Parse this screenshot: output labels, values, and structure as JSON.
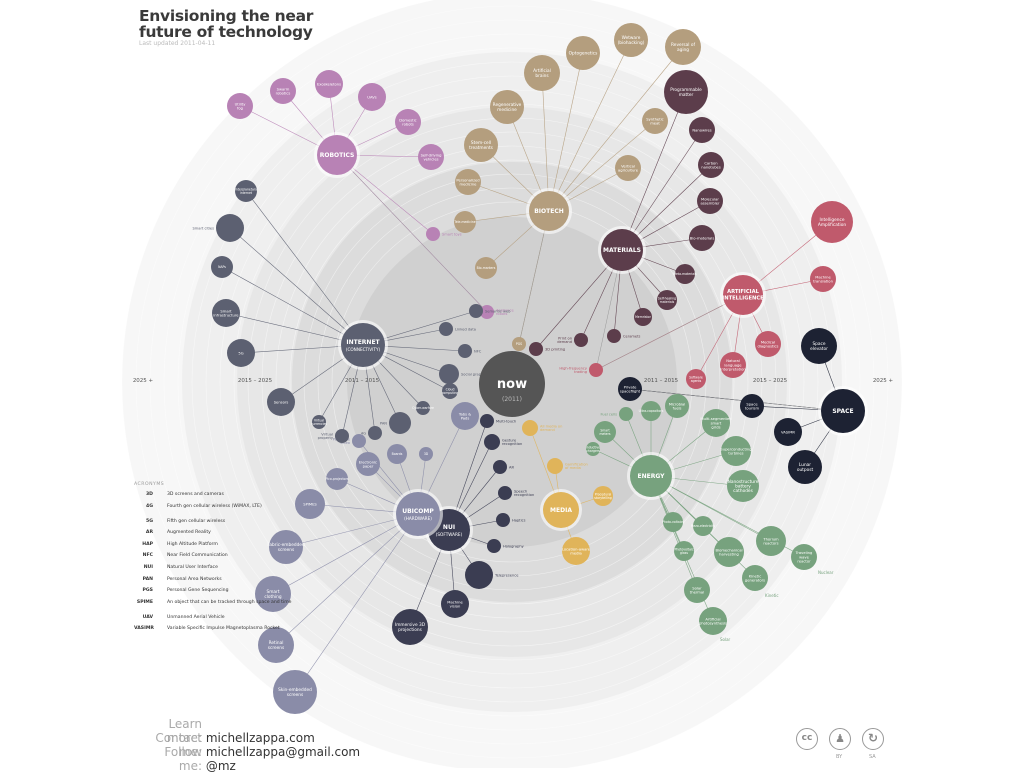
{
  "title_line1": "Envisioning the near",
  "title_line2": "future of technology",
  "updated": "Last updated 2011-04-11",
  "rings": {
    "left_inner": "2011 – 2015",
    "left_mid": "2015 – 2025",
    "left_outer": "2025 +",
    "right_inner": "2011 – 2015",
    "right_mid": "2015 – 2025",
    "right_outer": "2025 +"
  },
  "center": {
    "label": "now",
    "year": "(2011)"
  },
  "colors": {
    "robotics": "#b882b5",
    "biotech": "#b49e7e",
    "materials": "#5c3d4b",
    "ai": "#c05a6c",
    "space": "#1d2233",
    "energy": "#77a27e",
    "media": "#e0b45a",
    "nui": "#3b3d52",
    "ubicomp": "#8a8ca8",
    "internet": "#5c6071"
  },
  "hubs": [
    {
      "id": "robotics",
      "label": "ROBOTICS",
      "color": "robotics"
    },
    {
      "id": "biotech",
      "label": "BIOTECH",
      "color": "biotech"
    },
    {
      "id": "materials",
      "label": "MATERIALS",
      "color": "materials"
    },
    {
      "id": "ai",
      "label": "ARTIFICIAL INTELLIGENCE",
      "color": "ai"
    },
    {
      "id": "space",
      "label": "SPACE",
      "color": "space"
    },
    {
      "id": "energy",
      "label": "ENERGY",
      "color": "energy"
    },
    {
      "id": "media",
      "label": "MEDIA",
      "color": "media"
    },
    {
      "id": "nui",
      "label": "NUI",
      "sub": "(SOFTWARE)",
      "color": "nui"
    },
    {
      "id": "ubicomp",
      "label": "UBICOMP",
      "sub": "(HARDWARE)",
      "color": "ubicomp"
    },
    {
      "id": "internet",
      "label": "INTERNET",
      "sub": "(CONNECTIVITY)",
      "color": "internet"
    }
  ],
  "nodes": [
    {
      "hub": "robotics",
      "label": "Utility fog"
    },
    {
      "hub": "robotics",
      "label": "Swarm robotics"
    },
    {
      "hub": "robotics",
      "label": "Exoskeletons"
    },
    {
      "hub": "robotics",
      "label": "UAVs"
    },
    {
      "hub": "robotics",
      "label": "Domestic robots"
    },
    {
      "hub": "robotics",
      "label": "Self-driving vehicles"
    },
    {
      "hub": "robotics",
      "label": "Smart toys"
    },
    {
      "hub": "robotics",
      "label": "Appliance robots"
    },
    {
      "hub": "biotech",
      "label": "Artificial brains"
    },
    {
      "hub": "biotech",
      "label": "Optogenetics"
    },
    {
      "hub": "biotech",
      "label": "Wetware (biohacking)"
    },
    {
      "hub": "biotech",
      "label": "Reversal of aging"
    },
    {
      "hub": "biotech",
      "label": "Regenerative medicine"
    },
    {
      "hub": "biotech",
      "label": "Synthetic meat"
    },
    {
      "hub": "biotech",
      "label": "Stem-cell treatments"
    },
    {
      "hub": "biotech",
      "label": "Vertical agriculture"
    },
    {
      "hub": "biotech",
      "label": "Personalized medicine"
    },
    {
      "hub": "biotech",
      "label": "Tele-medicine"
    },
    {
      "hub": "biotech",
      "label": "Bio-markers"
    },
    {
      "hub": "biotech",
      "label": "PGS"
    },
    {
      "hub": "materials",
      "label": "Programmable matter"
    },
    {
      "hub": "materials",
      "label": "Nanowires"
    },
    {
      "hub": "materials",
      "label": "Carbon nanotubes"
    },
    {
      "hub": "materials",
      "label": "Molecular assembler"
    },
    {
      "hub": "materials",
      "label": "Bio-materials"
    },
    {
      "hub": "materials",
      "label": "Meta-materials"
    },
    {
      "hub": "materials",
      "label": "Self-healing materials"
    },
    {
      "hub": "materials",
      "label": "Memristor"
    },
    {
      "hub": "materials",
      "label": "Ceramets"
    },
    {
      "hub": "materials",
      "label": "Print on demand"
    },
    {
      "hub": "materials",
      "label": "3D printing"
    },
    {
      "hub": "ai",
      "label": "Intelligence Amplification"
    },
    {
      "hub": "ai",
      "label": "Machine translation"
    },
    {
      "hub": "ai",
      "label": "Medical diagnostics"
    },
    {
      "hub": "ai",
      "label": "Natural language interpretation"
    },
    {
      "hub": "ai",
      "label": "Software agents"
    },
    {
      "hub": "ai",
      "label": "High-frequency trading"
    },
    {
      "hub": "space",
      "label": "Space elevator"
    },
    {
      "hub": "space",
      "label": "Space tourism"
    },
    {
      "hub": "space",
      "label": "VASIMR"
    },
    {
      "hub": "space",
      "label": "Lunar outpost"
    },
    {
      "hub": "space",
      "label": "Private spaceflight"
    },
    {
      "hub": "energy",
      "label": "Ultra-capacitors"
    },
    {
      "hub": "energy",
      "label": "Microbial fuels"
    },
    {
      "hub": "energy",
      "label": "Fuel cells"
    },
    {
      "hub": "energy",
      "label": "Smart meters"
    },
    {
      "hub": "energy",
      "label": "Inductive chargers"
    },
    {
      "hub": "energy",
      "label": "Multi-segmented smart grids"
    },
    {
      "hub": "energy",
      "label": "Superconducting turbines"
    },
    {
      "hub": "energy",
      "label": "Nanostructure battery cathodes"
    },
    {
      "hub": "energy",
      "label": "Photo-voltaics"
    },
    {
      "hub": "energy",
      "label": "Piezo-electricity"
    },
    {
      "hub": "energy",
      "label": "Photovoltaic glass"
    },
    {
      "hub": "energy",
      "label": "Biomechanical harvesting"
    },
    {
      "hub": "energy",
      "label": "Thorium reactors"
    },
    {
      "hub": "energy",
      "label": "Traveling wave reactor"
    },
    {
      "hub": "energy",
      "label": "Kinetic generators"
    },
    {
      "hub": "energy",
      "label": "Solar thermal"
    },
    {
      "hub": "energy",
      "label": "Artificial photosynthesis"
    },
    {
      "hub": "media",
      "label": "All media on demand"
    },
    {
      "hub": "media",
      "label": "Gamification of media"
    },
    {
      "hub": "media",
      "label": "Procedural storytelling"
    },
    {
      "hub": "media",
      "label": "Location-aware media"
    },
    {
      "hub": "nui",
      "label": "Multi-touch"
    },
    {
      "hub": "nui",
      "label": "Gesture recognition"
    },
    {
      "hub": "nui",
      "label": "AR"
    },
    {
      "hub": "nui",
      "label": "Speech recognition"
    },
    {
      "hub": "nui",
      "label": "Haptics"
    },
    {
      "hub": "nui",
      "label": "Holography"
    },
    {
      "hub": "nui",
      "label": "Telepresence"
    },
    {
      "hub": "nui",
      "label": "Machine vision"
    },
    {
      "hub": "nui",
      "label": "Immersive 3D projections"
    },
    {
      "hub": "ubicomp",
      "label": "Tabs & Pads"
    },
    {
      "hub": "ubicomp",
      "label": "3D"
    },
    {
      "hub": "ubicomp",
      "label": "Boards"
    },
    {
      "hub": "ubicomp",
      "label": "Electronic paper"
    },
    {
      "hub": "ubicomp",
      "label": "Pervasive video"
    },
    {
      "hub": "ubicomp",
      "label": "Pico-projectors"
    },
    {
      "hub": "ubicomp",
      "label": "SPIMES"
    },
    {
      "hub": "ubicomp",
      "label": "Fabric-embedded screens"
    },
    {
      "hub": "ubicomp",
      "label": "Smart clothing"
    },
    {
      "hub": "ubicomp",
      "label": "Retinal screens"
    },
    {
      "hub": "ubicomp",
      "label": "Skin-embedded screens"
    },
    {
      "hub": "internet",
      "label": "Interplanetary internet"
    },
    {
      "hub": "internet",
      "label": "Smart cities"
    },
    {
      "hub": "internet",
      "label": "NAPs"
    },
    {
      "hub": "internet",
      "label": "Smart infrastructure"
    },
    {
      "hub": "internet",
      "label": "5G"
    },
    {
      "hub": "internet",
      "label": "Sensors"
    },
    {
      "hub": "internet",
      "label": "Virtual currencies"
    },
    {
      "hub": "internet",
      "label": "Virtual property"
    },
    {
      "hub": "internet",
      "label": "4G"
    },
    {
      "hub": "internet",
      "label": "PAN"
    },
    {
      "hub": "internet",
      "label": "Cyber-warfare"
    },
    {
      "hub": "internet",
      "label": "Cloud computing"
    },
    {
      "hub": "internet",
      "label": "Social graph"
    },
    {
      "hub": "internet",
      "label": "NFC"
    },
    {
      "hub": "internet",
      "label": "Linked data"
    },
    {
      "hub": "internet",
      "label": "Semantic web"
    }
  ],
  "side_labels": [
    "Nuclear",
    "Kinetic",
    "Solar"
  ],
  "acronyms": {
    "heading": "ACRONYMS",
    "items": [
      {
        "k": "3D",
        "v": "3D screens and cameras"
      },
      {
        "k": "4G",
        "v": "Fourth gen cellular wireless (WiMAX, LTE)"
      },
      {
        "k": "5G",
        "v": "Fifth gen cellular wireless"
      },
      {
        "k": "AR",
        "v": "Augmented Reality"
      },
      {
        "k": "HAP",
        "v": "High Altitude Platform"
      },
      {
        "k": "NFC",
        "v": "Near Field Communication"
      },
      {
        "k": "NUI",
        "v": "Natural User Interface"
      },
      {
        "k": "PAN",
        "v": "Personal Area Networks"
      },
      {
        "k": "PGS",
        "v": "Personal Gene Sequencing"
      },
      {
        "k": "SPIME",
        "v": "An object that can be tracked through space and time"
      },
      {
        "k": "UAV",
        "v": "Unmanned Aerial Vehicle"
      },
      {
        "k": "VASIMR",
        "v": "Variable Specific Impulse Magnetoplasma Rocket"
      }
    ]
  },
  "footer": {
    "learn_label": "Learn more:",
    "learn_value": "michellzappa.com",
    "contact_label": "Contact me:",
    "contact_value": "michellzappa@gmail.com",
    "follow_label": "Follow me:",
    "follow_value": "@mz"
  },
  "license": {
    "cc": "cc",
    "by": "BY",
    "sa": "SA"
  }
}
